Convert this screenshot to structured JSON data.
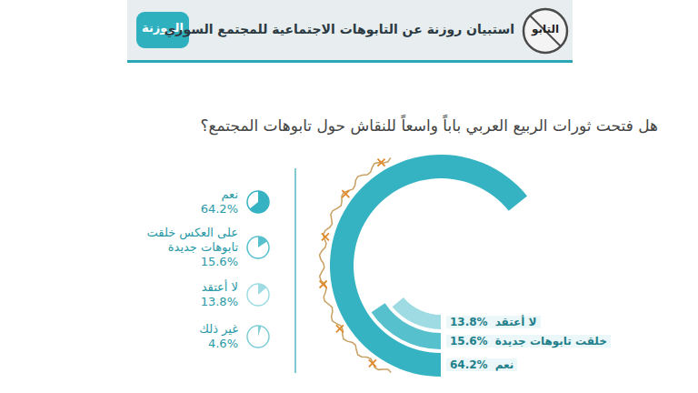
{
  "header": {
    "title": "استبيان روزنة عن التابوهات الاجتماعية للمجتمع السوري",
    "logo_left": "التابو",
    "logo_right": "الروزنة"
  },
  "chart_data": {
    "type": "radial_bar",
    "title": "هل فتحت ثورات الربيع العربي باباً واسعاً للنقاش حول تابوهات المجتمع؟",
    "categories": [
      "نعم",
      "على العكس خلقت تابوهات جديدة",
      "لا أعتقد",
      "غير ذلك"
    ],
    "values": [
      64.2,
      15.6,
      13.8,
      4.6
    ],
    "value_labels": [
      "64.2%",
      "15.6%",
      "13.8%",
      "4.6%"
    ],
    "arc_labels": [
      "نعم",
      "خلقت تابوهات جديدة",
      "لا أعتقد"
    ],
    "colors": [
      "#35b3c2",
      "#56c0cc",
      "#9fdbe2",
      "#7fcdd6"
    ],
    "ylim": [
      0,
      100
    ],
    "legend": "left",
    "data_labels": true,
    "tick_labels": false
  }
}
